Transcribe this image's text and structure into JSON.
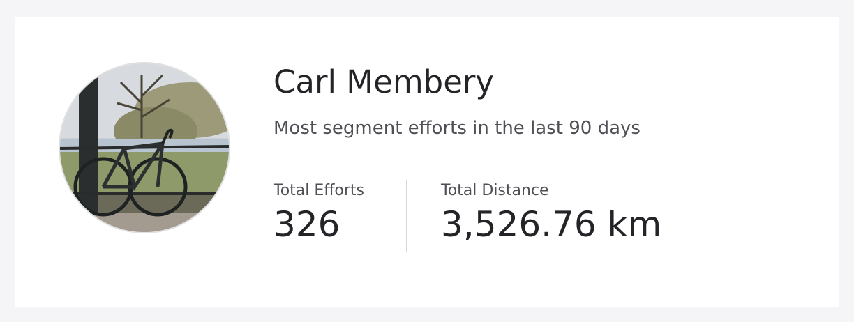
{
  "athlete": {
    "name": "Carl Membery",
    "subtitle": "Most segment efforts in the last 90 days"
  },
  "stats": [
    {
      "label": "Total Efforts",
      "value": "326"
    },
    {
      "label": "Total Distance",
      "value": "3,526.76 km"
    }
  ]
}
